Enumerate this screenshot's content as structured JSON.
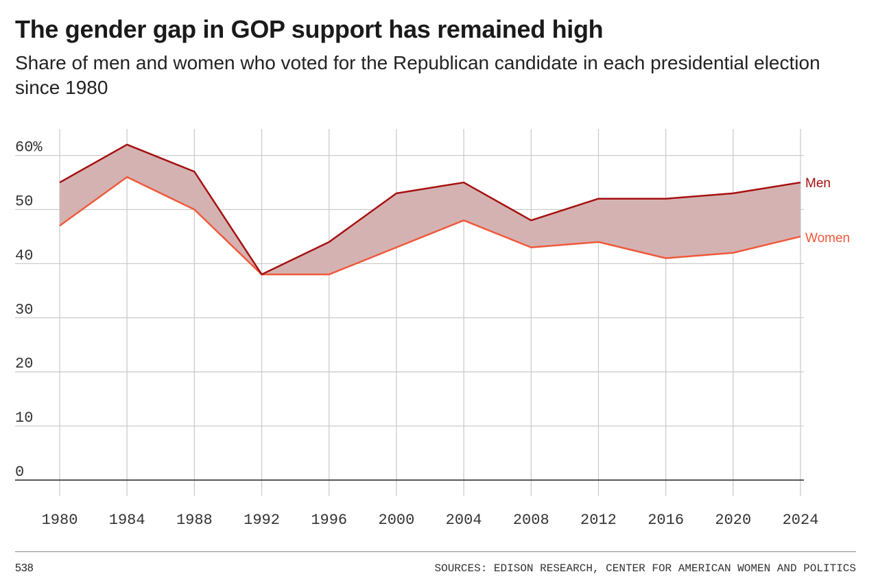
{
  "colors": {
    "men": "#a50f0f",
    "women": "#f0583a",
    "gap_fill": "#d5b2b2",
    "grid": "#cccccc",
    "baseline": "#222222"
  },
  "chart_data": {
    "type": "area",
    "title": "The gender gap in GOP support has remained high",
    "subtitle": "Share of men and women who voted for the Republican candidate in each presidential election since 1980",
    "xlabel": "",
    "ylabel": "",
    "x": [
      1980,
      1984,
      1988,
      1992,
      1996,
      2000,
      2004,
      2008,
      2012,
      2016,
      2020,
      2024
    ],
    "x_tick_labels": [
      "1980",
      "1984",
      "1988",
      "1992",
      "1996",
      "2000",
      "2004",
      "2008",
      "2012",
      "2016",
      "2020",
      "2024"
    ],
    "y_ticks": [
      0,
      10,
      20,
      30,
      40,
      50,
      60
    ],
    "y_tick_labels": [
      "0",
      "10",
      "20",
      "30",
      "40",
      "50",
      "60%"
    ],
    "ylim": [
      0,
      65
    ],
    "grid": true,
    "series": [
      {
        "name": "Men",
        "values": [
          55,
          62,
          57,
          38,
          44,
          53,
          55,
          48,
          52,
          52,
          53,
          55
        ]
      },
      {
        "name": "Women",
        "values": [
          47,
          56,
          50,
          38,
          38,
          43,
          48,
          43,
          44,
          41,
          42,
          45
        ]
      }
    ],
    "fill_between": [
      "Men",
      "Women"
    ],
    "legend": "inline-right"
  },
  "footer": {
    "brand": "538",
    "source": "SOURCES: EDISON RESEARCH, CENTER FOR AMERICAN WOMEN AND POLITICS"
  }
}
